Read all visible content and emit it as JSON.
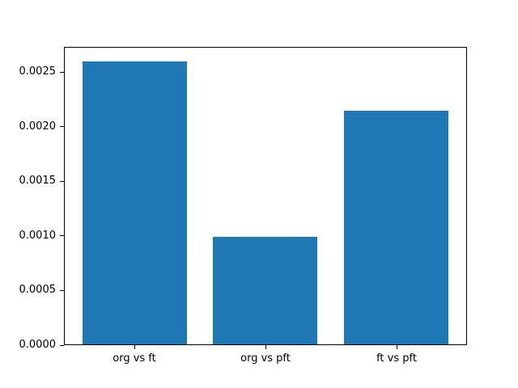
{
  "figure": {
    "background": "#ffffff",
    "title": ""
  },
  "chart_data": {
    "type": "bar",
    "categories": [
      "org vs ft",
      "org vs pft",
      "ft vs pft"
    ],
    "values": [
      0.0026,
      0.00099,
      0.00215
    ],
    "title": "",
    "xlabel": "",
    "ylabel": "",
    "ylim": [
      0,
      0.00273
    ],
    "yticks": [
      0.0,
      0.0005,
      0.001,
      0.0015,
      0.002,
      0.0025
    ],
    "ytick_labels": [
      "0.0000",
      "0.0005",
      "0.0010",
      "0.0015",
      "0.0020",
      "0.0025"
    ],
    "bar_width_fraction": 0.8,
    "bar_color": "#1f77b4",
    "spine_color": "#000000",
    "grid": false,
    "legend": null
  }
}
